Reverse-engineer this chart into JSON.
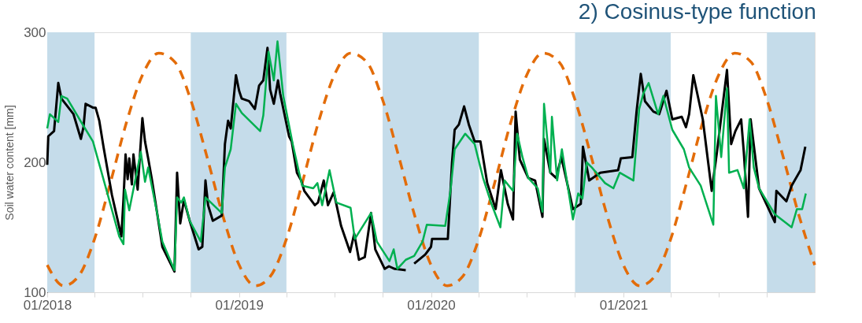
{
  "chart_data": {
    "type": "line",
    "title": "2) Cosinus-type function",
    "ylabel": "Soil water content [mm]",
    "xlim": [
      "2018-01-01",
      "2021-12-31"
    ],
    "ylim": [
      100,
      300
    ],
    "yticks": [
      100,
      200,
      300
    ],
    "xticks": [
      {
        "value": "2018-01-01",
        "label": "01/2018"
      },
      {
        "value": "2018-04-01",
        "label": null
      },
      {
        "value": "2018-07-01",
        "label": null
      },
      {
        "value": "2018-10-01",
        "label": null
      },
      {
        "value": "2019-01-01",
        "label": "01/2019"
      },
      {
        "value": "2019-04-01",
        "label": null
      },
      {
        "value": "2019-07-01",
        "label": null
      },
      {
        "value": "2019-10-01",
        "label": null
      },
      {
        "value": "2020-01-01",
        "label": "01/2020"
      },
      {
        "value": "2020-04-01",
        "label": null
      },
      {
        "value": "2020-07-01",
        "label": null
      },
      {
        "value": "2020-10-01",
        "label": null
      },
      {
        "value": "2021-01-01",
        "label": "01/2021"
      },
      {
        "value": "2021-04-01",
        "label": null
      },
      {
        "value": "2021-07-01",
        "label": null
      },
      {
        "value": "2021-10-01",
        "label": null
      }
    ],
    "grid": false,
    "marker": "none",
    "bands": [
      {
        "axis": "x",
        "from": "2018-01-01",
        "to": "2018-04-01",
        "color": "#c5dcea"
      },
      {
        "axis": "x",
        "from": "2018-10-01",
        "to": "2019-04-01",
        "color": "#c5dcea"
      },
      {
        "axis": "x",
        "from": "2019-10-01",
        "to": "2020-04-01",
        "color": "#c5dcea"
      },
      {
        "axis": "x",
        "from": "2020-10-01",
        "to": "2021-04-01",
        "color": "#c5dcea"
      },
      {
        "axis": "x",
        "from": "2021-10-01",
        "to": "2021-12-31",
        "color": "#c5dcea"
      }
    ],
    "series": [
      {
        "color": "#e36c09",
        "line_style": "dashed",
        "x": [
          "2018-01-01",
          "2018-02-01",
          "2018-03-01",
          "2018-04-01",
          "2018-05-01",
          "2018-06-01",
          "2018-07-01",
          "2018-08-01",
          "2018-09-01",
          "2018-10-01",
          "2018-11-01",
          "2018-12-01",
          "2019-01-01",
          "2019-02-01",
          "2019-03-01",
          "2019-04-01",
          "2019-05-01",
          "2019-06-01",
          "2019-07-01",
          "2019-08-01",
          "2019-09-01",
          "2019-10-01",
          "2019-11-01",
          "2019-12-01",
          "2020-01-01",
          "2020-02-01",
          "2020-03-01",
          "2020-04-01",
          "2020-05-01",
          "2020-06-01",
          "2020-07-01",
          "2020-08-01",
          "2020-09-01",
          "2020-10-01",
          "2020-11-01",
          "2020-12-01",
          "2021-01-01",
          "2021-02-01",
          "2021-03-01",
          "2021-04-01",
          "2021-05-01",
          "2021-06-01",
          "2021-07-01",
          "2021-08-01",
          "2021-09-01",
          "2021-10-01",
          "2021-11-01",
          "2021-12-01",
          "2021-12-31"
        ],
        "values": [
          121,
          105,
          112,
          141,
          184,
          231,
          267,
          284,
          277,
          248,
          204,
          159,
          121,
          105,
          112,
          141,
          184,
          231,
          267,
          284,
          277,
          248,
          204,
          159,
          121,
          105,
          112,
          141,
          184,
          231,
          267,
          284,
          277,
          248,
          204,
          159,
          121,
          105,
          112,
          141,
          184,
          231,
          267,
          284,
          277,
          248,
          204,
          159,
          121
        ]
      },
      {
        "color": "#000000",
        "line_style": "solid",
        "x": [
          "2018-01-01",
          "2018-01-03",
          "2018-01-14",
          "2018-01-22",
          "2018-01-28",
          "2018-02-20",
          "2018-03-06",
          "2018-03-11",
          "2018-03-15",
          "2018-03-29",
          "2018-04-03",
          "2018-04-10",
          "2018-04-18",
          "2018-05-04",
          "2018-05-22",
          "2018-05-26",
          "2018-05-30",
          "2018-06-03",
          "2018-06-06",
          "2018-06-11",
          "2018-06-14",
          "2018-06-22",
          "2018-07-01",
          "2018-07-06",
          "2018-07-12",
          "2018-07-19",
          "2018-07-29",
          "2018-08-08",
          "2018-08-31",
          "2018-09-05",
          "2018-09-11",
          "2018-09-18",
          "2018-09-29",
          "2018-10-16",
          "2018-10-23",
          "2018-10-29",
          "2018-11-03",
          "2018-11-12",
          "2018-11-29",
          "2018-12-05",
          "2018-12-11",
          "2018-12-16",
          "2018-12-26",
          "2019-01-01",
          "2019-01-06",
          "2019-01-20",
          "2019-01-31",
          "2019-02-08",
          "2019-02-16",
          "2019-02-24",
          "2019-03-01",
          "2019-03-08",
          "2019-03-16",
          "2019-03-20",
          "2019-04-06",
          "2019-04-11",
          "2019-04-21",
          "2019-04-29",
          "2019-05-05",
          "2019-05-25",
          "2019-05-31",
          "2019-06-11",
          "2019-06-19",
          "2019-06-30",
          "2019-07-14",
          "2019-07-31",
          "2019-08-08",
          "2019-08-17",
          "2019-08-28",
          "2019-09-09",
          "2019-09-17",
          "2019-10-05",
          "2019-10-13",
          "2019-10-24",
          "2019-11-14",
          "2019-11-22",
          "2019-11-30",
          "2019-12-21",
          "2020-01-01",
          "2020-01-03",
          "2020-01-20",
          "2020-02-02",
          "2020-02-10",
          "2020-02-15",
          "2020-02-23",
          "2020-03-04",
          "2020-03-13",
          "2020-03-24",
          "2020-04-04",
          "2020-04-17",
          "2020-05-03",
          "2020-05-13",
          "2020-05-26",
          "2020-06-05",
          "2020-06-10",
          "2020-06-18",
          "2020-07-04",
          "2020-07-17",
          "2020-07-31",
          "2020-08-03",
          "2020-08-15",
          "2020-08-26",
          "2020-09-05",
          "2020-09-27",
          "2020-10-12",
          "2020-10-16",
          "2020-10-28",
          "2020-11-18",
          "2020-12-22",
          "2020-12-27",
          "2021-01-18",
          "2021-01-26",
          "2021-02-03",
          "2021-02-11",
          "2021-02-27",
          "2021-03-10",
          "2021-03-24",
          "2021-04-04",
          "2021-04-22",
          "2021-04-30",
          "2021-05-06",
          "2021-05-14",
          "2021-06-01",
          "2021-06-18",
          "2021-06-28",
          "2021-07-17",
          "2021-07-25",
          "2021-08-02",
          "2021-08-13",
          "2021-08-18",
          "2021-08-26",
          "2021-08-31",
          "2021-09-16",
          "2021-10-16",
          "2021-10-19",
          "2021-11-07",
          "2021-11-17",
          "2021-12-04",
          "2021-12-13"
        ],
        "values": [
          198,
          220,
          224,
          261,
          249,
          237,
          218,
          227,
          245,
          242,
          242,
          232,
          212,
          175,
          143,
          171,
          206,
          187,
          203,
          183,
          206,
          179,
          234,
          216,
          203,
          187,
          161,
          135,
          116,
          192,
          153,
          171,
          155,
          133,
          135,
          186,
          167,
          155,
          159,
          214,
          232,
          226,
          267,
          255,
          249,
          247,
          241,
          259,
          263,
          288,
          256,
          245,
          263,
          253,
          220,
          216,
          192,
          186,
          178,
          167,
          169,
          186,
          167,
          177,
          151,
          131,
          145,
          125,
          127,
          161,
          133,
          118,
          120,
          118,
          117,
          null,
          122,
          129,
          135,
          141,
          141,
          141,
          200,
          225,
          229,
          243,
          229,
          216,
          216,
          184,
          164,
          194,
          168,
          156,
          239,
          202,
          188,
          186,
          158,
          218,
          192,
          188,
          204,
          164,
          168,
          212,
          186,
          192,
          194,
          203,
          204,
          239,
          268,
          247,
          239,
          237,
          255,
          233,
          235,
          227,
          237,
          267,
          233,
          178,
          208,
          271,
          214,
          224,
          233,
          208,
          158,
          233,
          180,
          154,
          178,
          170,
          182,
          194,
          212
        ]
      },
      {
        "color": "#00b050",
        "line_style": "solid",
        "x": [
          "2018-01-01",
          "2018-01-06",
          "2018-01-22",
          "2018-01-28",
          "2018-02-08",
          "2018-03-08",
          "2018-03-29",
          "2018-04-20",
          "2018-05-18",
          "2018-05-26",
          "2018-05-29",
          "2018-06-06",
          "2018-06-28",
          "2018-07-06",
          "2018-07-12",
          "2018-07-29",
          "2018-08-08",
          "2018-08-31",
          "2018-09-05",
          "2018-09-13",
          "2018-09-18",
          "2018-09-29",
          "2018-10-20",
          "2018-10-29",
          "2018-11-29",
          "2018-12-05",
          "2018-12-16",
          "2018-12-26",
          "2019-01-06",
          "2019-02-10",
          "2019-02-16",
          "2019-02-26",
          "2019-03-08",
          "2019-03-15",
          "2019-03-26",
          "2019-04-13",
          "2019-04-24",
          "2019-05-01",
          "2019-05-22",
          "2019-05-30",
          "2019-06-08",
          "2019-06-22",
          "2019-07-05",
          "2019-08-01",
          "2019-08-09",
          "2019-09-09",
          "2019-09-20",
          "2019-10-14",
          "2019-10-22",
          "2019-10-29",
          "2019-11-14",
          "2019-11-30",
          "2019-12-16",
          "2019-12-24",
          "2020-01-28",
          "2020-02-07",
          "2020-02-15",
          "2020-03-06",
          "2020-03-24",
          "2020-04-09",
          "2020-04-25",
          "2020-05-12",
          "2020-05-20",
          "2020-06-05",
          "2020-06-13",
          "2020-06-23",
          "2020-07-04",
          "2020-07-22",
          "2020-07-31",
          "2020-08-03",
          "2020-08-15",
          "2020-08-18",
          "2020-08-28",
          "2020-09-06",
          "2020-09-27",
          "2020-10-07",
          "2020-10-15",
          "2020-10-23",
          "2020-11-02",
          "2020-11-27",
          "2020-12-13",
          "2020-12-25",
          "2021-01-20",
          "2021-01-31",
          "2021-02-08",
          "2021-02-18",
          "2021-03-08",
          "2021-03-18",
          "2021-04-04",
          "2021-04-26",
          "2021-05-06",
          "2021-05-28",
          "2021-06-21",
          "2021-06-26",
          "2021-07-06",
          "2021-07-17",
          "2021-07-21",
          "2021-08-06",
          "2021-08-18",
          "2021-08-29",
          "2021-09-06",
          "2021-09-16",
          "2021-10-16",
          "2021-11-17",
          "2021-11-27",
          "2021-12-07",
          "2021-12-14"
        ],
        "values": [
          226,
          237,
          231,
          251,
          249,
          230,
          216,
          184,
          143,
          137,
          179,
          163,
          208,
          185,
          196,
          161,
          139,
          117,
          173,
          169,
          173,
          155,
          139,
          173,
          161,
          196,
          210,
          245,
          238,
          224,
          236,
          285,
          263,
          293,
          251,
          214,
          194,
          182,
          180,
          184,
          167,
          194,
          169,
          165,
          141,
          161,
          139,
          124,
          133,
          118,
          125,
          128,
          139,
          152,
          151,
          178,
          210,
          222,
          214,
          188,
          168,
          150,
          186,
          178,
          222,
          204,
          188,
          180,
          162,
          245,
          192,
          235,
          186,
          210,
          156,
          176,
          172,
          200,
          196,
          184,
          180,
          192,
          186,
          241,
          253,
          261,
          237,
          251,
          225,
          210,
          196,
          182,
          152,
          251,
          204,
          257,
          192,
          194,
          180,
          233,
          196,
          180,
          160,
          150,
          164,
          164,
          176
        ]
      }
    ]
  }
}
